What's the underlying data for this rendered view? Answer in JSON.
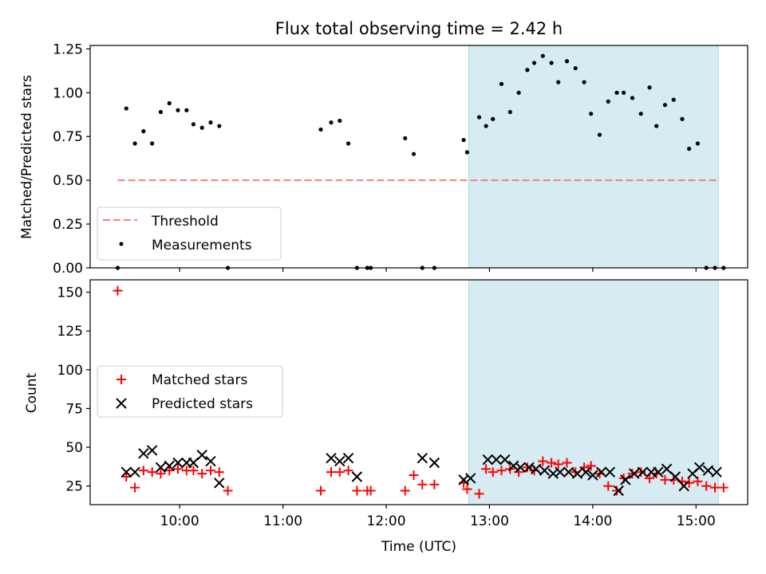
{
  "chart_data": [
    {
      "type": "scatter",
      "title": "Flux total observing time = 2.42 h",
      "xlabel": "",
      "ylabel": "Matched/Predicted stars",
      "ylim": [
        0,
        1.27
      ],
      "xlim": [
        "09:08",
        "15:30"
      ],
      "yticks": [
        "0.00",
        "0.25",
        "0.50",
        "0.75",
        "1.00",
        "1.25"
      ],
      "shaded_region": {
        "start": "12:48",
        "end": "15:13"
      },
      "legend": [
        "Threshold",
        "Measurements"
      ],
      "legend_position": "lower-left",
      "threshold": {
        "name": "Threshold",
        "value": 0.5,
        "x": [
          "09:24",
          "15:13"
        ],
        "color": "#f08080"
      },
      "series": [
        {
          "name": "Measurements",
          "x": [
            "09:24",
            "09:29",
            "09:34",
            "09:39",
            "09:44",
            "09:49",
            "09:54",
            "09:59",
            "10:04",
            "10:08",
            "10:13",
            "10:18",
            "10:23",
            "10:28",
            "11:22",
            "11:28",
            "11:33",
            "11:38",
            "11:43",
            "11:49",
            "11:51",
            "12:11",
            "12:16",
            "12:21",
            "12:28",
            "12:45",
            "12:47",
            "12:54",
            "12:58",
            "13:02",
            "13:07",
            "13:12",
            "13:17",
            "13:22",
            "13:26",
            "13:31",
            "13:36",
            "13:40",
            "13:45",
            "13:50",
            "13:55",
            "13:59",
            "14:04",
            "14:09",
            "14:14",
            "14:18",
            "14:23",
            "14:28",
            "14:33",
            "14:37",
            "14:42",
            "14:47",
            "14:52",
            "14:56",
            "15:01",
            "15:06",
            "15:11",
            "15:16"
          ],
          "y": [
            0.0,
            0.91,
            0.71,
            0.78,
            0.71,
            0.89,
            0.94,
            0.9,
            0.9,
            0.82,
            0.8,
            0.83,
            0.81,
            0.0,
            0.79,
            0.83,
            0.84,
            0.71,
            0.0,
            0.0,
            0.0,
            0.74,
            0.65,
            0.0,
            0.0,
            0.73,
            0.66,
            0.86,
            0.81,
            0.85,
            1.05,
            0.89,
            1.0,
            1.13,
            1.17,
            1.21,
            1.17,
            1.06,
            1.18,
            1.14,
            1.06,
            0.88,
            0.76,
            0.95,
            1.0,
            1.0,
            0.97,
            0.88,
            1.03,
            0.81,
            0.93,
            0.96,
            0.85,
            0.68,
            0.71,
            0.0,
            0.0,
            0.0
          ],
          "color": "#000000"
        }
      ]
    },
    {
      "type": "scatter",
      "title": "",
      "xlabel": "Time (UTC)",
      "ylabel": "Count",
      "ylim": [
        13,
        158
      ],
      "xlim": [
        "09:08",
        "15:30"
      ],
      "yticks": [
        "25",
        "50",
        "75",
        "100",
        "125",
        "150"
      ],
      "xticks": [
        "10:00",
        "11:00",
        "12:00",
        "13:00",
        "14:00",
        "15:00"
      ],
      "shaded_region": {
        "start": "12:48",
        "end": "15:13"
      },
      "legend": [
        "Matched stars",
        "Predicted stars"
      ],
      "legend_position": "center-left",
      "series": [
        {
          "name": "Matched stars",
          "marker": "+",
          "color": "#ff0000",
          "x": [
            "09:24",
            "09:29",
            "09:34",
            "09:39",
            "09:44",
            "09:49",
            "09:54",
            "09:59",
            "10:04",
            "10:08",
            "10:13",
            "10:18",
            "10:23",
            "10:28",
            "11:22",
            "11:28",
            "11:33",
            "11:38",
            "11:43",
            "11:49",
            "11:51",
            "12:11",
            "12:16",
            "12:21",
            "12:28",
            "12:45",
            "12:47",
            "12:54",
            "12:58",
            "13:02",
            "13:07",
            "13:12",
            "13:17",
            "13:22",
            "13:26",
            "13:31",
            "13:36",
            "13:40",
            "13:45",
            "13:50",
            "13:55",
            "13:59",
            "14:04",
            "14:09",
            "14:14",
            "14:18",
            "14:23",
            "14:28",
            "14:33",
            "14:37",
            "14:42",
            "14:47",
            "14:52",
            "14:56",
            "15:01",
            "15:06",
            "15:11",
            "15:16"
          ],
          "y": [
            151,
            31,
            24,
            35,
            34,
            33,
            35,
            36,
            35,
            35,
            33,
            35,
            34,
            22,
            22,
            34,
            34,
            35,
            22,
            22,
            22,
            22,
            32,
            26,
            26,
            27,
            23,
            20,
            36,
            34,
            35,
            36,
            34,
            37,
            35,
            41,
            40,
            39,
            40,
            34,
            37,
            38,
            33,
            25,
            22,
            30,
            33,
            34,
            30,
            33,
            29,
            29,
            28,
            27,
            28,
            25,
            24,
            24
          ]
        },
        {
          "name": "Predicted stars",
          "marker": "x",
          "color": "#000000",
          "x": [
            "09:29",
            "09:34",
            "09:39",
            "09:44",
            "09:49",
            "09:54",
            "09:59",
            "10:04",
            "10:08",
            "10:13",
            "10:18",
            "10:23",
            "11:28",
            "11:33",
            "11:38",
            "11:43",
            "12:21",
            "12:28",
            "12:45",
            "12:49",
            "12:59",
            "13:04",
            "13:09",
            "13:14",
            "13:18",
            "13:23",
            "13:27",
            "13:32",
            "13:37",
            "13:41",
            "13:46",
            "13:51",
            "13:56",
            "14:00",
            "14:05",
            "14:10",
            "14:15",
            "14:19",
            "14:24",
            "14:29",
            "14:34",
            "14:38",
            "14:43",
            "14:48",
            "14:53",
            "14:58",
            "15:02",
            "15:07",
            "15:12"
          ],
          "y": [
            34,
            34,
            46,
            48,
            37,
            38,
            40,
            40,
            40,
            45,
            41,
            27,
            43,
            41,
            43,
            31,
            43,
            40,
            29,
            30,
            42,
            42,
            42,
            38,
            37,
            37,
            36,
            35,
            33,
            34,
            34,
            33,
            34,
            32,
            34,
            34,
            22,
            29,
            33,
            34,
            34,
            34,
            36,
            31,
            25,
            33,
            37,
            35,
            34
          ]
        }
      ]
    }
  ]
}
